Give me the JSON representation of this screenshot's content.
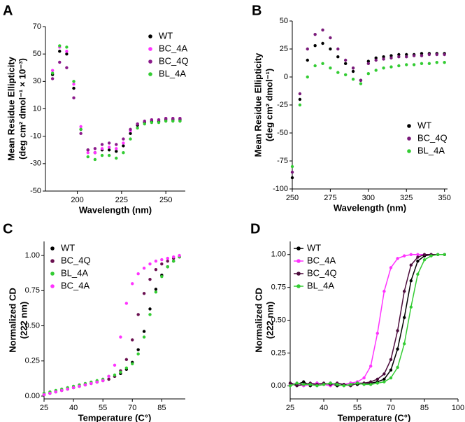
{
  "chart_data": [
    {
      "type": "scatter",
      "panel": "A",
      "xlabel": "Wavelength (nm)",
      "ylabel": [
        "Mean Residue Ellipticity",
        "(deg cm² dmol⁻¹ × 10⁻³)"
      ],
      "x": [
        186,
        190,
        194,
        198,
        202,
        206,
        210,
        214,
        218,
        222,
        226,
        230,
        234,
        238,
        242,
        246,
        250,
        254,
        258
      ],
      "xlim": [
        182,
        261
      ],
      "xticks": [
        200,
        225,
        250
      ],
      "ylim": [
        -50,
        70
      ],
      "yticks": [
        -50,
        -30,
        -10,
        10,
        30,
        50,
        70
      ],
      "legend": "upper right",
      "series": [
        {
          "name": "WT",
          "color": "#000000",
          "values": [
            35,
            52,
            50,
            25,
            -5,
            -20,
            -22,
            -20,
            -20,
            -21,
            -17,
            -8,
            -2,
            0,
            1,
            1,
            2,
            2,
            2
          ]
        },
        {
          "name": "BC_4A",
          "color": "#ff33ff",
          "values": [
            38,
            55,
            52,
            28,
            -3,
            -22,
            -22,
            -19,
            -18,
            -19,
            -15,
            -6,
            -1,
            1,
            2,
            2,
            3,
            3,
            3
          ]
        },
        {
          "name": "BC_4Q",
          "color": "#8b1a8b",
          "values": [
            32,
            44,
            40,
            18,
            -8,
            -20,
            -19,
            -16,
            -15,
            -16,
            -12,
            -5,
            -1,
            1,
            2,
            2,
            3,
            3,
            3
          ]
        },
        {
          "name": "BL_4A",
          "color": "#33cc33",
          "values": [
            36,
            56,
            55,
            30,
            -5,
            -25,
            -27,
            -24,
            -24,
            -26,
            -22,
            -12,
            -4,
            -1,
            0,
            0,
            1,
            1,
            1
          ]
        }
      ]
    },
    {
      "type": "scatter",
      "panel": "B",
      "xlabel": "Wavelength (nm)",
      "ylabel": [
        "Mean Residue Ellipticity",
        "(deg cm² dmol⁻¹)"
      ],
      "x": [
        250,
        255,
        260,
        265,
        270,
        275,
        280,
        285,
        290,
        295,
        300,
        305,
        310,
        315,
        320,
        325,
        330,
        335,
        340,
        345,
        350
      ],
      "xlim": [
        250,
        352
      ],
      "xticks": [
        250,
        275,
        300,
        325,
        350
      ],
      "ylim": [
        -100,
        50
      ],
      "yticks": [
        -100,
        -75,
        -50,
        -25,
        0,
        25,
        50
      ],
      "legend": "center right",
      "series": [
        {
          "name": "WT",
          "color": "#000000",
          "values": [
            -90,
            -20,
            15,
            28,
            30,
            25,
            18,
            12,
            5,
            -3,
            14,
            17,
            18,
            19,
            20,
            20,
            20,
            21,
            21,
            21,
            21
          ]
        },
        {
          "name": "BC_4Q",
          "color": "#7a1a7a",
          "values": [
            -85,
            -15,
            25,
            38,
            42,
            35,
            25,
            15,
            8,
            -3,
            12,
            15,
            16,
            17,
            18,
            18,
            19,
            19,
            20,
            20,
            20
          ]
        },
        {
          "name": "BL_4A",
          "color": "#33cc33",
          "values": [
            -80,
            -25,
            0,
            10,
            12,
            8,
            4,
            2,
            -2,
            -6,
            3,
            6,
            8,
            9,
            10,
            11,
            11,
            12,
            12,
            13,
            13
          ]
        }
      ]
    },
    {
      "type": "scatter",
      "panel": "C",
      "xlabel": "Temperature (C°)",
      "ylabel": [
        "Normalized CD",
        "(222 nm)"
      ],
      "x": [
        25,
        28,
        31,
        34,
        37,
        40,
        43,
        46,
        49,
        52,
        55,
        58,
        61,
        64,
        67,
        70,
        73,
        76,
        79,
        82,
        85,
        88,
        91,
        94
      ],
      "xlim": [
        25,
        97
      ],
      "xticks": [
        25,
        40,
        55,
        70,
        85
      ],
      "ylim": [
        -0.02,
        1.1
      ],
      "yticks": [
        {
          "value": 0,
          "label": "0.00"
        },
        {
          "value": 0.25,
          "label": "0.25"
        },
        {
          "value": 0.5,
          "label": "0.50"
        },
        {
          "value": 0.75,
          "label": "0.75"
        },
        {
          "value": 1,
          "label": "1.00"
        }
      ],
      "legend": "upper left",
      "series": [
        {
          "name": "WT",
          "color": "#000000",
          "values": [
            0.01,
            0.02,
            0.03,
            0.04,
            0.05,
            0.06,
            0.07,
            0.08,
            0.09,
            0.1,
            0.11,
            0.12,
            0.14,
            0.16,
            0.19,
            0.24,
            0.33,
            0.46,
            0.62,
            0.76,
            0.86,
            0.92,
            0.96,
            0.99
          ]
        },
        {
          "name": "BC_4Q",
          "color": "#6a1050",
          "values": [
            0.01,
            0.02,
            0.03,
            0.04,
            0.05,
            0.06,
            0.07,
            0.08,
            0.09,
            0.1,
            0.11,
            0.12,
            0.14,
            0.18,
            0.26,
            0.4,
            0.58,
            0.73,
            0.83,
            0.9,
            0.94,
            0.96,
            0.98,
            0.99
          ]
        },
        {
          "name": "BL_4A",
          "color": "#33cc33",
          "values": [
            0.02,
            0.03,
            0.04,
            0.05,
            0.06,
            0.07,
            0.08,
            0.09,
            0.1,
            0.11,
            0.12,
            0.14,
            0.15,
            0.17,
            0.2,
            0.23,
            0.3,
            0.42,
            0.58,
            0.74,
            0.85,
            0.92,
            0.96,
            0.99
          ]
        },
        {
          "name": "BC_4A",
          "color": "#ff33ff",
          "values": [
            0.01,
            0.02,
            0.03,
            0.04,
            0.05,
            0.06,
            0.07,
            0.08,
            0.09,
            0.1,
            0.11,
            0.14,
            0.22,
            0.42,
            0.66,
            0.8,
            0.87,
            0.91,
            0.94,
            0.96,
            0.97,
            0.98,
            0.99,
            1.0
          ]
        }
      ]
    },
    {
      "type": "line",
      "panel": "D",
      "xlabel": "Temperature (C°)",
      "ylabel": [
        "Normalized CD",
        "(222 nm)"
      ],
      "x": [
        25,
        28,
        31,
        34,
        37,
        40,
        43,
        46,
        49,
        52,
        55,
        58,
        61,
        64,
        67,
        70,
        73,
        76,
        79,
        82,
        85,
        88,
        91,
        94
      ],
      "xlim": [
        25,
        100
      ],
      "xticks": [
        25,
        40,
        55,
        70,
        85,
        100
      ],
      "ylim": [
        -0.1,
        1.1
      ],
      "yticks": [
        {
          "value": 0,
          "label": "0.00"
        },
        {
          "value": 0.25,
          "label": "0.25"
        },
        {
          "value": 0.5,
          "label": "0.50"
        },
        {
          "value": 0.75,
          "label": "0.75"
        },
        {
          "value": 1,
          "label": "1.00"
        }
      ],
      "legend": "upper left",
      "series": [
        {
          "name": "WT",
          "color": "#000000",
          "values": [
            0.02,
            0.01,
            0.03,
            0,
            0.02,
            0.01,
            0.02,
            0,
            0.01,
            0.02,
            0.01,
            0.02,
            0.02,
            0.03,
            0.05,
            0.12,
            0.28,
            0.52,
            0.8,
            0.95,
            0.99,
            1.0,
            1.0,
            1.0
          ]
        },
        {
          "name": "BC_4A",
          "color": "#ff33ff",
          "values": [
            0.01,
            0.02,
            0,
            0.01,
            0.02,
            0.01,
            0,
            0.02,
            0.01,
            0.02,
            0.03,
            0.06,
            0.15,
            0.4,
            0.72,
            0.9,
            0.97,
            0.99,
            1.0,
            1.0,
            1.0,
            1.0,
            1.0,
            1.0
          ]
        },
        {
          "name": "BC_4Q",
          "color": "#4a0a3a",
          "values": [
            0.02,
            0,
            0.01,
            0.02,
            0.01,
            0.02,
            0.01,
            0.02,
            0.01,
            0,
            0.02,
            0.02,
            0.03,
            0.05,
            0.09,
            0.2,
            0.42,
            0.72,
            0.92,
            0.98,
            1.0,
            1.0,
            1.0,
            1.0
          ]
        },
        {
          "name": "BL_4A",
          "color": "#33cc33",
          "values": [
            0,
            0.02,
            0.01,
            0.01,
            0,
            0.01,
            0.02,
            0.01,
            0,
            0.01,
            0.02,
            0.01,
            0.01,
            0.02,
            0.03,
            0.06,
            0.14,
            0.32,
            0.6,
            0.85,
            0.96,
            0.99,
            1.0,
            1.0
          ]
        }
      ]
    }
  ]
}
